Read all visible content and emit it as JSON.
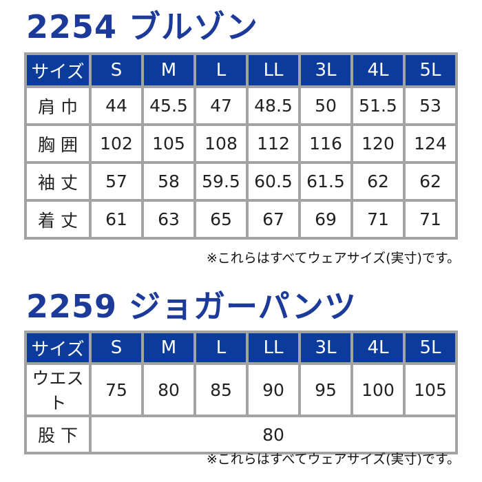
{
  "tables": [
    {
      "title": "2254 ブルゾン",
      "headers": [
        "サイズ",
        "S",
        "M",
        "L",
        "LL",
        "3L",
        "4L",
        "5L"
      ],
      "rows": [
        [
          "肩 巾",
          "44",
          "45.5",
          "47",
          "48.5",
          "50",
          "51.5",
          "53"
        ],
        [
          "胸 囲",
          "102",
          "105",
          "108",
          "112",
          "116",
          "120",
          "124"
        ],
        [
          "袖 丈",
          "57",
          "58",
          "59.5",
          "60.5",
          "61.5",
          "62",
          "62"
        ],
        [
          "着 丈",
          "61",
          "63",
          "65",
          "67",
          "69",
          "71",
          "71"
        ]
      ],
      "note": "※これらはすべてウェアサイズ(実寸)です。"
    },
    {
      "title": "2259 ジョガーパンツ",
      "headers": [
        "サイズ",
        "S",
        "M",
        "L",
        "LL",
        "3L",
        "4L",
        "5L"
      ],
      "rows": [
        [
          "ウエスト",
          "75",
          "80",
          "85",
          "90",
          "95",
          "100",
          "105"
        ]
      ],
      "inseam": {
        "label": "股 下",
        "value": "80"
      },
      "note": "※これらはすべてウェアサイズ(実寸)です。"
    }
  ],
  "colors": {
    "header_bg": "#0b3b9b",
    "title": "#1b3a9a",
    "border": "#a3a3a3"
  }
}
